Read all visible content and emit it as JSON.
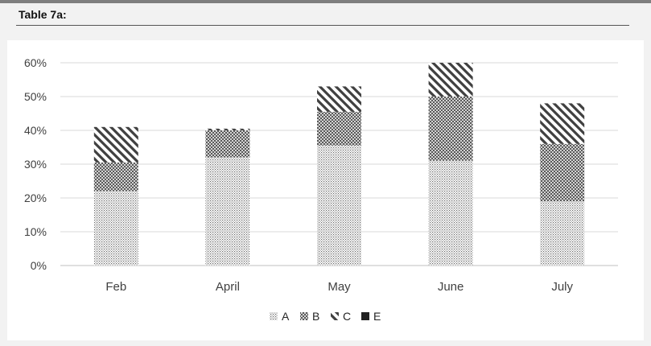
{
  "page": {
    "title": "Table 7a:"
  },
  "chart_data": {
    "type": "bar",
    "stacked": true,
    "categories": [
      "Feb",
      "April",
      "May",
      "June",
      "July"
    ],
    "series": [
      {
        "name": "A",
        "values": [
          22,
          32,
          35.5,
          31,
          19
        ],
        "pattern": "dots-fine"
      },
      {
        "name": "B",
        "values": [
          8.5,
          8,
          10,
          19,
          17
        ],
        "pattern": "dots-coarse"
      },
      {
        "name": "C",
        "values": [
          10.5,
          0.5,
          7.5,
          10,
          12
        ],
        "pattern": "diagonal"
      },
      {
        "name": "E",
        "values": [
          0,
          0,
          0,
          0,
          0
        ],
        "pattern": "solid"
      }
    ],
    "y_ticks": [
      "0%",
      "10%",
      "20%",
      "30%",
      "40%",
      "50%",
      "60%"
    ],
    "ylim": [
      0,
      60
    ],
    "y_unit": "%",
    "grid": true,
    "legend_position": "bottom-center",
    "colors": {
      "pattern": "#595959",
      "grid": "#d9d9d9",
      "text": "#404040"
    }
  }
}
